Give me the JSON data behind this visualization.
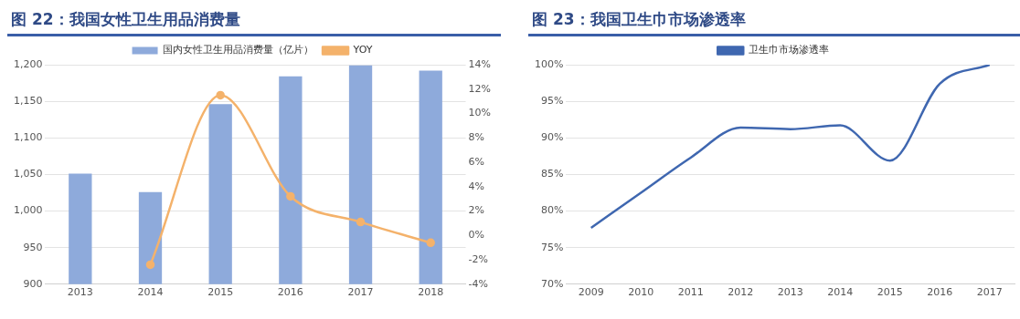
{
  "chart_data": [
    {
      "type": "bar",
      "title": "图 22：我国女性卫生用品消费量",
      "categories": [
        "2013",
        "2014",
        "2015",
        "2016",
        "2017",
        "2018"
      ],
      "series": [
        {
          "name": "国内女性卫生用品消费量（亿片）",
          "color": "#8eaadb",
          "values": [
            1051,
            1026,
            1146,
            1184,
            1199,
            1192
          ]
        },
        {
          "name": "YOY",
          "type": "line",
          "axis": "y2",
          "color": "#f4b26b",
          "values": [
            null,
            -2.4,
            11.5,
            3.2,
            1.1,
            -0.6
          ]
        }
      ],
      "ylim": [
        900,
        1200
      ],
      "yticks": [
        {
          "value": 900,
          "label": "900"
        },
        {
          "value": 950,
          "label": "950"
        },
        {
          "value": 1000,
          "label": "1,000"
        },
        {
          "value": 1050,
          "label": "1,050"
        },
        {
          "value": 1100,
          "label": "1,100"
        },
        {
          "value": 1150,
          "label": "1,150"
        },
        {
          "value": 1200,
          "label": "1,200"
        }
      ],
      "y2lim": [
        -4,
        14
      ],
      "y2ticks": [
        {
          "value": -4,
          "label": "-4%"
        },
        {
          "value": -2,
          "label": "-2%"
        },
        {
          "value": 0,
          "label": "0%"
        },
        {
          "value": 2,
          "label": "2%"
        },
        {
          "value": 4,
          "label": "4%"
        },
        {
          "value": 6,
          "label": "6%"
        },
        {
          "value": 8,
          "label": "8%"
        },
        {
          "value": 10,
          "label": "10%"
        },
        {
          "value": 12,
          "label": "12%"
        },
        {
          "value": 14,
          "label": "14%"
        }
      ],
      "grid": "y",
      "legend": "top",
      "marker": "circle"
    },
    {
      "type": "line",
      "title": "图 23：我国卫生巾市场渗透率",
      "categories": [
        "2009",
        "2010",
        "2011",
        "2012",
        "2013",
        "2014",
        "2015",
        "2016",
        "2017"
      ],
      "series": [
        {
          "name": "卫生巾市场渗透率",
          "color": "#3f67b0",
          "values": [
            77.7,
            82.5,
            87.3,
            91.4,
            91.2,
            91.7,
            86.9,
            97.4,
            100
          ]
        }
      ],
      "ylim": [
        70,
        100
      ],
      "yticks": [
        {
          "value": 70,
          "label": "70%"
        },
        {
          "value": 75,
          "label": "75%"
        },
        {
          "value": 80,
          "label": "80%"
        },
        {
          "value": 85,
          "label": "85%"
        },
        {
          "value": 90,
          "label": "90%"
        },
        {
          "value": 95,
          "label": "95%"
        },
        {
          "value": 100,
          "label": "100%"
        }
      ],
      "grid": "y",
      "legend": "top",
      "marker": "none"
    }
  ]
}
